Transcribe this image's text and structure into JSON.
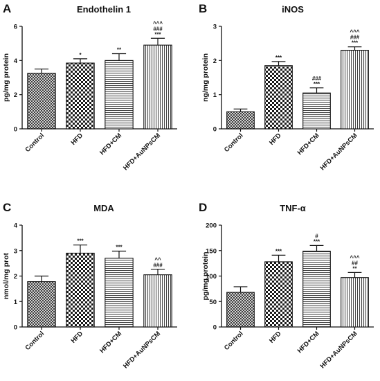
{
  "chart_data": [
    {
      "type": "bar",
      "panel": "A",
      "title": "Endothelin 1",
      "ylabel": "pg/mg protein",
      "xlabel": "",
      "ylim": [
        0,
        6
      ],
      "yticks": [
        0,
        2,
        4,
        6
      ],
      "categories": [
        "Control",
        "HFD",
        "HFD+CM",
        "HFD+AuNPsCM"
      ],
      "values": [
        3.25,
        3.85,
        4.0,
        4.9
      ],
      "errors": [
        0.25,
        0.25,
        0.4,
        0.4
      ],
      "patterns": [
        "crosshatch",
        "checker",
        "horizontal",
        "vertical"
      ],
      "annotations": [
        [],
        [
          "*"
        ],
        [
          "**"
        ],
        [
          "^^^",
          "###",
          "***"
        ]
      ],
      "grid": false
    },
    {
      "type": "bar",
      "panel": "B",
      "title": "iNOS",
      "ylabel": "ng/mg protein",
      "xlabel": "",
      "ylim": [
        0,
        3
      ],
      "yticks": [
        0,
        1,
        2,
        3
      ],
      "categories": [
        "Control",
        "HFD",
        "HFD+CM",
        "HFD+AuNPsCM"
      ],
      "values": [
        0.5,
        1.85,
        1.05,
        2.3
      ],
      "errors": [
        0.08,
        0.12,
        0.15,
        0.1
      ],
      "patterns": [
        "crosshatch",
        "checker",
        "horizontal",
        "vertical"
      ],
      "annotations": [
        [],
        [
          "***"
        ],
        [
          "###",
          "***"
        ],
        [
          "^^^",
          "###",
          "***"
        ]
      ],
      "grid": false
    },
    {
      "type": "bar",
      "panel": "C",
      "title": "MDA",
      "ylabel": "nmol/mg prot",
      "xlabel": "",
      "ylim": [
        0,
        4
      ],
      "yticks": [
        0,
        1,
        2,
        3,
        4
      ],
      "categories": [
        "Control",
        "HFD",
        "HFD+CM",
        "HFD+AuNPsCM"
      ],
      "values": [
        1.78,
        2.9,
        2.7,
        2.05
      ],
      "errors": [
        0.22,
        0.32,
        0.28,
        0.22
      ],
      "patterns": [
        "crosshatch",
        "checker",
        "horizontal",
        "vertical"
      ],
      "annotations": [
        [],
        [
          "***"
        ],
        [
          "***"
        ],
        [
          "^^",
          "###"
        ]
      ],
      "grid": false
    },
    {
      "type": "bar",
      "panel": "D",
      "title": "TNF-α",
      "ylabel": "pg/mg protein",
      "xlabel": "",
      "ylim": [
        0,
        200
      ],
      "yticks": [
        0,
        50,
        100,
        150,
        200
      ],
      "categories": [
        "Control",
        "HFD",
        "HFD+CM",
        "HFD+AuNPsCM"
      ],
      "values": [
        68,
        128,
        149,
        97
      ],
      "errors": [
        11,
        13,
        11,
        10
      ],
      "patterns": [
        "crosshatch",
        "checker",
        "horizontal",
        "vertical"
      ],
      "annotations": [
        [],
        [
          "***"
        ],
        [
          "#",
          "***"
        ],
        [
          "^^^",
          "##",
          "**"
        ]
      ],
      "grid": false
    }
  ]
}
